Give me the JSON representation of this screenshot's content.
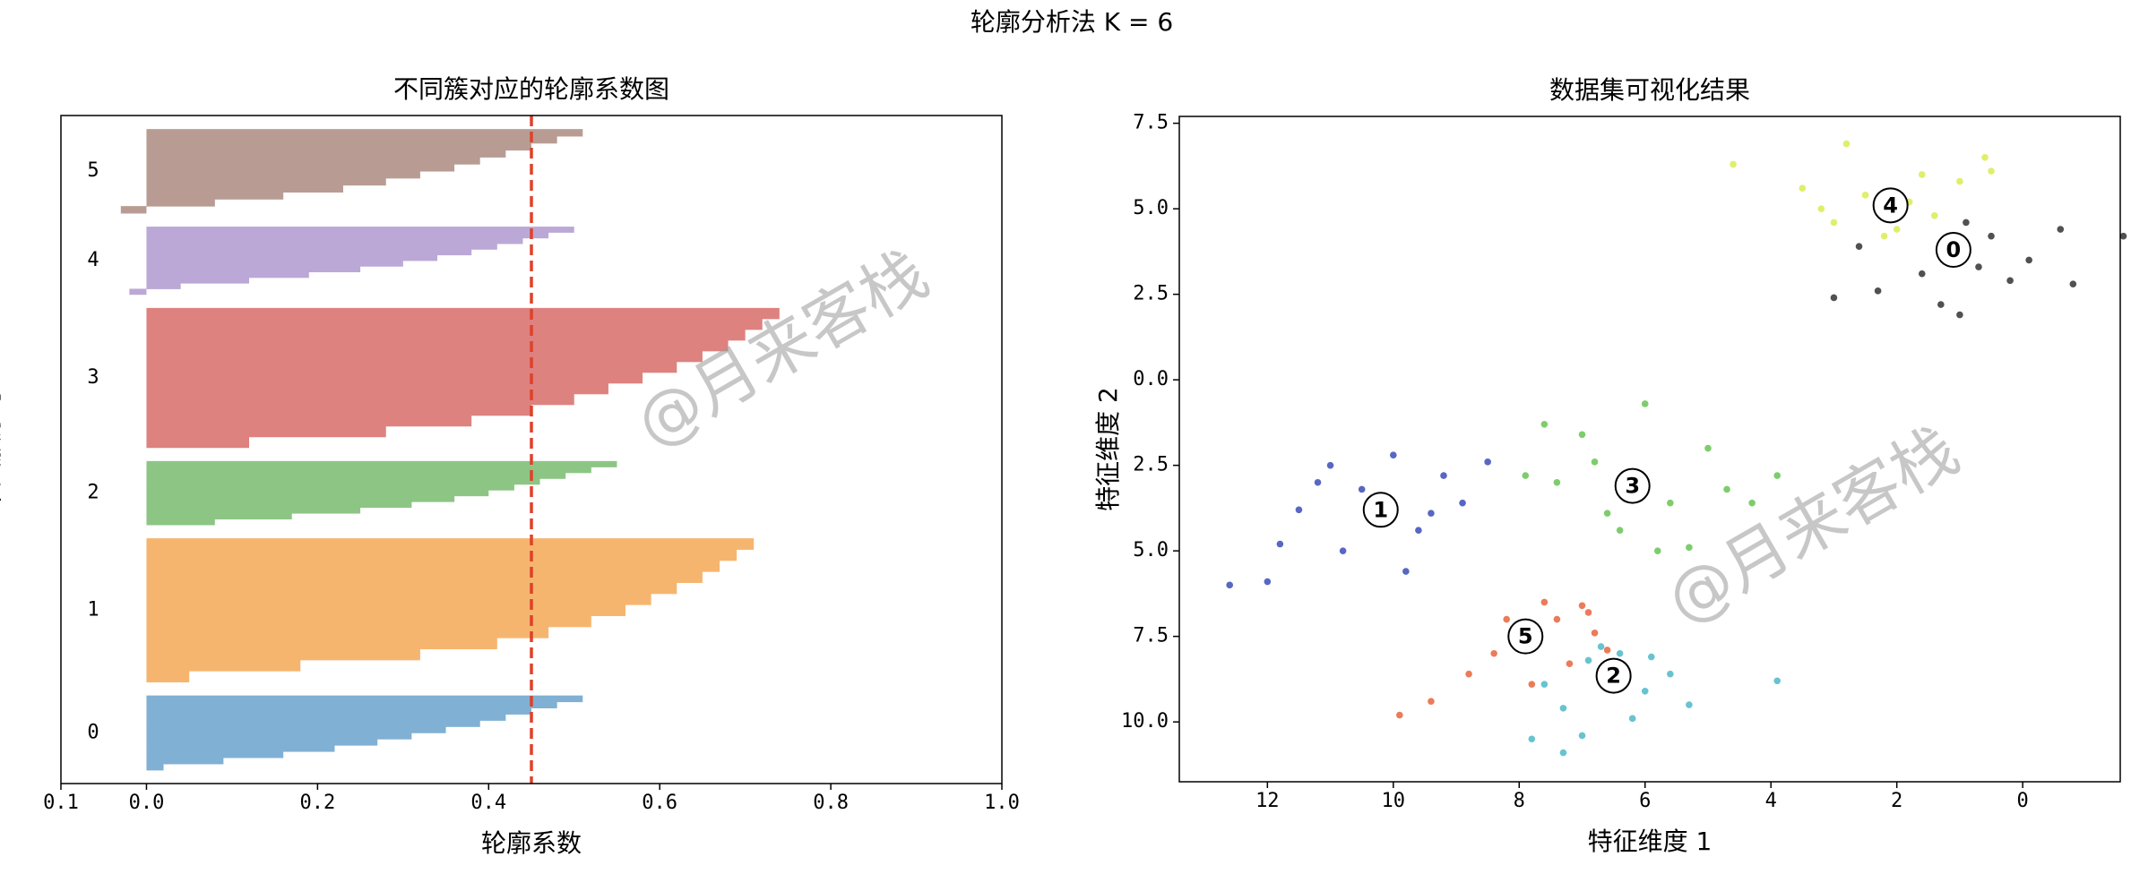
{
  "figure_title": "轮廓分析法 K = 6",
  "watermark": "@月来客栈",
  "chart_data": [
    {
      "type": "silhouette",
      "title": "不同簇对应的轮廓系数图",
      "xlabel": "轮廓系数",
      "ylabel": "聚类簇序号",
      "xlim": [
        -0.1,
        1.0
      ],
      "xticks": [
        {
          "value": -0.1,
          "label": "0.1"
        },
        {
          "value": 0,
          "label": "0.0"
        },
        0.2,
        0.4,
        0.6,
        0.8,
        {
          "value": 1.0,
          "label": "1.0"
        }
      ],
      "ylim": [
        0,
        493
      ],
      "average": 0.45,
      "average_color": "#e0412a",
      "clusters": [
        {
          "name": "0",
          "color": "#80b0d4",
          "size": 55,
          "values": [
            0.51,
            0.48,
            0.45,
            0.42,
            0.39,
            0.35,
            0.31,
            0.27,
            0.22,
            0.16,
            0.09,
            0.02
          ]
        },
        {
          "name": "1",
          "color": "#f6b56f",
          "size": 106,
          "values": [
            0.71,
            0.69,
            0.67,
            0.65,
            0.62,
            0.59,
            0.56,
            0.52,
            0.47,
            0.41,
            0.32,
            0.18,
            0.05
          ]
        },
        {
          "name": "2",
          "color": "#8dc585",
          "size": 47,
          "values": [
            0.55,
            0.52,
            0.49,
            0.46,
            0.43,
            0.4,
            0.36,
            0.31,
            0.25,
            0.17,
            0.08
          ]
        },
        {
          "name": "3",
          "color": "#dd827f",
          "size": 103,
          "values": [
            0.74,
            0.72,
            0.7,
            0.68,
            0.65,
            0.62,
            0.58,
            0.54,
            0.5,
            0.45,
            0.38,
            0.28,
            0.12
          ]
        },
        {
          "name": "4",
          "color": "#bba8d6",
          "size": 50,
          "values": [
            0.5,
            0.47,
            0.44,
            0.41,
            0.38,
            0.34,
            0.3,
            0.25,
            0.19,
            0.12,
            0.04,
            -0.02
          ]
        },
        {
          "name": "5",
          "color": "#b89c93",
          "size": 62,
          "values": [
            0.51,
            0.48,
            0.45,
            0.42,
            0.39,
            0.36,
            0.32,
            0.28,
            0.23,
            0.16,
            0.08,
            -0.03
          ]
        }
      ]
    },
    {
      "type": "scatter",
      "title": "数据集可视化结果",
      "xlabel": "特征维度 1",
      "ylabel": "特征维度 2",
      "xlim": [
        -13.4,
        1.55
      ],
      "xticks": [
        {
          "value": -12,
          "label": "12"
        },
        {
          "value": -10,
          "label": "10"
        },
        {
          "value": -8,
          "label": "8"
        },
        {
          "value": -6,
          "label": "6"
        },
        {
          "value": -4,
          "label": "4"
        },
        {
          "value": -2,
          "label": "2"
        },
        0
      ],
      "ylim": [
        -11.75,
        7.7
      ],
      "yticks": [
        7.5,
        {
          "value": 5,
          "label": "5.0"
        },
        2.5,
        {
          "value": 0,
          "label": "0.0"
        },
        {
          "value": -2.5,
          "label": "2.5"
        },
        {
          "value": -5,
          "label": "5.0"
        },
        {
          "value": -7.5,
          "label": "7.5"
        },
        {
          "value": -10,
          "label": "10.0"
        }
      ],
      "series": [
        {
          "name": "0",
          "color": "#333333",
          "x": [
            -0.5,
            -1.6,
            -2.3,
            0.1,
            -0.9,
            -1.3,
            -2.6,
            0.6,
            -0.2,
            -1.9,
            -0.7,
            -3.0,
            -1.2,
            0.8,
            -1.0,
            1.6
          ],
          "y": [
            4.2,
            3.1,
            2.6,
            3.5,
            4.6,
            2.2,
            3.9,
            4.4,
            2.9,
            5.0,
            3.3,
            2.4,
            4.0,
            2.8,
            1.9,
            4.2
          ]
        },
        {
          "name": "1",
          "color": "#3b4cb8",
          "x": [
            -10.5,
            -9.6,
            -11.2,
            -10.0,
            -8.9,
            -11.8,
            -10.8,
            -9.2,
            -9.8,
            -11.0,
            -12.6,
            -10.3,
            -8.5,
            -9.4,
            -12.0,
            -11.5
          ],
          "y": [
            -3.2,
            -4.4,
            -3.0,
            -2.2,
            -3.6,
            -4.8,
            -5.0,
            -2.8,
            -5.6,
            -2.5,
            -6.0,
            -4.0,
            -2.4,
            -3.9,
            -5.9,
            -3.8
          ]
        },
        {
          "name": "2",
          "color": "#4db8c8",
          "x": [
            -6.9,
            -6.0,
            -7.3,
            -6.4,
            -5.6,
            -7.0,
            -6.2,
            -5.3,
            -7.6,
            -6.7,
            -5.9,
            -3.9,
            -7.3,
            -7.8
          ],
          "y": [
            -8.2,
            -9.1,
            -9.6,
            -8.0,
            -8.6,
            -10.4,
            -9.9,
            -9.5,
            -8.9,
            -7.8,
            -8.1,
            -8.8,
            -10.9,
            -10.5
          ]
        },
        {
          "name": "3",
          "color": "#66c452",
          "x": [
            -6.8,
            -5.6,
            -7.4,
            -5.0,
            -6.4,
            -7.9,
            -5.3,
            -6.0,
            -4.7,
            -7.0,
            -5.8,
            -6.6,
            -4.3,
            -7.6,
            -3.9
          ],
          "y": [
            -2.4,
            -3.6,
            -3.0,
            -2.0,
            -4.4,
            -2.8,
            -4.9,
            -0.7,
            -3.2,
            -1.6,
            -5.0,
            -3.9,
            -3.6,
            -1.3,
            -2.8
          ]
        },
        {
          "name": "4",
          "color": "#d9ec50",
          "x": [
            -2.5,
            -1.6,
            -3.0,
            -1.0,
            -2.2,
            -3.5,
            -1.4,
            -2.8,
            -0.6,
            -2.0,
            -4.6,
            -3.2,
            -1.8,
            -0.5
          ],
          "y": [
            5.4,
            6.0,
            4.6,
            5.8,
            4.2,
            5.6,
            4.8,
            6.9,
            6.5,
            4.4,
            6.3,
            5.0,
            5.2,
            6.1
          ]
        },
        {
          "name": "5",
          "color": "#e8643c",
          "x": [
            -7.4,
            -8.4,
            -7.0,
            -8.0,
            -6.8,
            -8.8,
            -7.6,
            -7.2,
            -8.2,
            -6.6,
            -9.4,
            -7.8,
            -9.9,
            -6.9
          ],
          "y": [
            -7.0,
            -8.0,
            -6.6,
            -7.8,
            -7.4,
            -8.6,
            -6.5,
            -8.3,
            -7.0,
            -7.9,
            -9.4,
            -8.9,
            -9.8,
            -6.8
          ]
        }
      ],
      "centers": {
        "x": [
          -1.1,
          -10.2,
          -6.5,
          -6.2,
          -2.1,
          -7.9
        ],
        "y": [
          3.8,
          -3.8,
          -8.65,
          -3.1,
          5.1,
          -7.5
        ]
      }
    }
  ]
}
